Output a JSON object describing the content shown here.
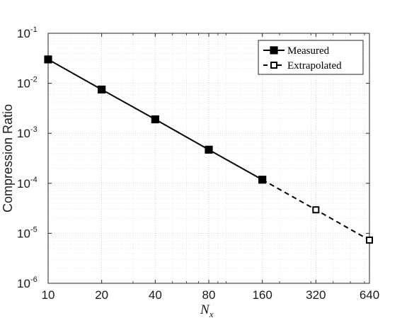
{
  "chart_data": {
    "type": "line",
    "title": "",
    "xlabel": {
      "base": "N",
      "sub": "x"
    },
    "ylabel": "Compression Ratio",
    "x_scale": "log2",
    "y_scale": "log10",
    "xlim": [
      10,
      640
    ],
    "ylim": [
      1e-06,
      0.1
    ],
    "x_ticks": [
      10,
      20,
      40,
      80,
      160,
      320,
      640
    ],
    "x_tick_labels": [
      "10",
      "20",
      "40",
      "80",
      "160",
      "320",
      "640"
    ],
    "y_ticks": [
      -6,
      -5,
      -4,
      -3,
      -2,
      -1
    ],
    "y_tick_labels": [
      {
        "base": "10",
        "exp": "-6"
      },
      {
        "base": "10",
        "exp": "-5"
      },
      {
        "base": "10",
        "exp": "-4"
      },
      {
        "base": "10",
        "exp": "-3"
      },
      {
        "base": "10",
        "exp": "-2"
      },
      {
        "base": "10",
        "exp": "-1"
      }
    ],
    "grid": true,
    "legend_position": "top-right",
    "series": [
      {
        "name": "Measured",
        "line_style": "solid",
        "marker": "filled-square",
        "color": "#000000",
        "x": [
          10,
          20,
          40,
          80,
          160
        ],
        "y": [
          0.03,
          0.0075,
          0.0019,
          0.00047,
          0.000118
        ]
      },
      {
        "name": "Extrapolated",
        "line_style": "dashed",
        "marker": "open-square",
        "color": "#000000",
        "x": [
          160,
          320,
          640
        ],
        "y": [
          0.000118,
          2.95e-05,
          7.3e-06
        ],
        "marker_indices": [
          1,
          2
        ]
      }
    ]
  }
}
